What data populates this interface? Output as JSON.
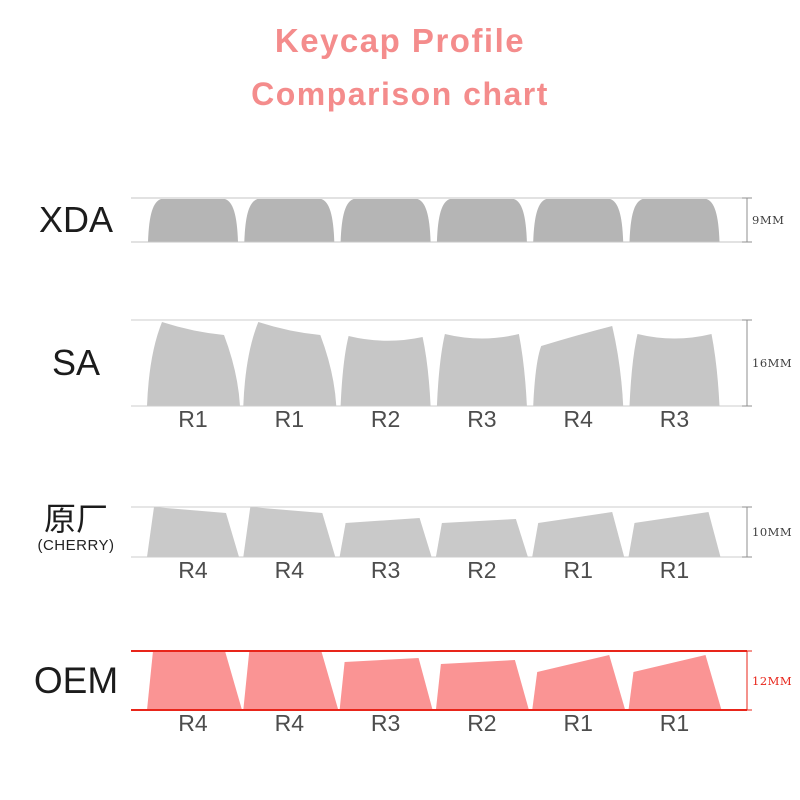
{
  "title": {
    "line1": "Keycap Profile",
    "line2": "Comparison chart",
    "color": "#f48c8c"
  },
  "rows": [
    {
      "id": "xda",
      "label": "XDA",
      "height_label": "9MM",
      "row_labels": [],
      "keycap_color": "#b5b5b5",
      "line_color": "#c6c6c6",
      "dim_color": "#8f8f8f",
      "dim_text_color": "#3f3f3f",
      "label_color": "#1c1c1c",
      "row_label_color": "#4d4d4d"
    },
    {
      "id": "sa",
      "label": "SA",
      "height_label": "16MM",
      "row_labels": [
        "R1",
        "R1",
        "R2",
        "R3",
        "R4",
        "R3"
      ],
      "keycap_color": "#c6c6c6",
      "line_color": "#cccccc",
      "dim_color": "#8f8f8f",
      "dim_text_color": "#3f3f3f",
      "label_color": "#1c1c1c",
      "row_label_color": "#4d4d4d"
    },
    {
      "id": "cherry",
      "label": "原厂",
      "sublabel": "(CHERRY)",
      "height_label": "10MM",
      "row_labels": [
        "R4",
        "R4",
        "R3",
        "R2",
        "R1",
        "R1"
      ],
      "keycap_color": "#c9c9c9",
      "line_color": "#cccccc",
      "dim_color": "#8f8f8f",
      "dim_text_color": "#3f3f3f",
      "label_color": "#1c1c1c",
      "row_label_color": "#4d4d4d"
    },
    {
      "id": "oem",
      "label": "OEM",
      "height_label": "12MM",
      "row_labels": [
        "R4",
        "R4",
        "R3",
        "R2",
        "R1",
        "R1"
      ],
      "keycap_color": "#fa9494",
      "line_color": "#e8251a",
      "dim_color": "#e8251a",
      "dim_text_color": "#e8251a",
      "label_color": "#1c1c1c",
      "row_label_color": "#4d4d4d"
    }
  ]
}
